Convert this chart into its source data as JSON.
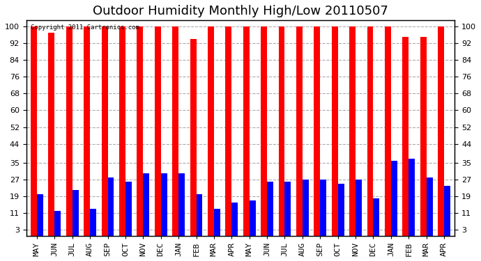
{
  "title": "Outdoor Humidity Monthly High/Low 20110507",
  "copyright_text": "Copyright 2011 Cartronics.com",
  "categories": [
    "MAY",
    "JUN",
    "JUL",
    "AUG",
    "SEP",
    "OCT",
    "NOV",
    "DEC",
    "JAN",
    "FEB",
    "MAR",
    "APR",
    "MAY",
    "JUN",
    "JUL",
    "AUG",
    "SEP",
    "OCT",
    "NOV",
    "DEC",
    "JAN",
    "FEB",
    "MAR",
    "APR"
  ],
  "highs": [
    100,
    97,
    100,
    100,
    100,
    100,
    100,
    100,
    100,
    94,
    100,
    100,
    100,
    100,
    100,
    100,
    100,
    100,
    100,
    100,
    100,
    95,
    95,
    100
  ],
  "lows": [
    20,
    12,
    22,
    13,
    28,
    26,
    30,
    30,
    30,
    20,
    13,
    16,
    17,
    26,
    26,
    27,
    27,
    25,
    27,
    18,
    36,
    37,
    28,
    24
  ],
  "high_color": "#ff0000",
  "low_color": "#0000ff",
  "bg_color": "#ffffff",
  "plot_bg": "#ffffff",
  "yticks": [
    3,
    11,
    19,
    27,
    35,
    44,
    52,
    60,
    68,
    76,
    84,
    92,
    100
  ],
  "ylim": [
    0,
    103
  ],
  "bar_width": 0.35,
  "title_fontsize": 13,
  "tick_fontsize": 8,
  "grid_color": "#aaaaaa"
}
